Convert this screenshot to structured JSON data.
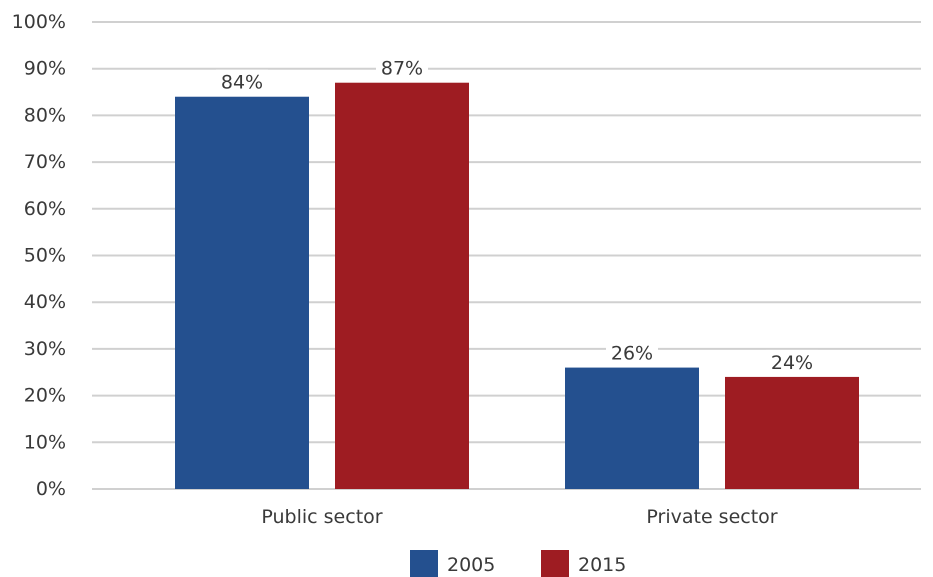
{
  "chart_data": {
    "type": "bar",
    "categories": [
      "Public sector",
      "Private sector"
    ],
    "series": [
      {
        "name": "2005",
        "values": [
          84,
          26
        ],
        "labels": [
          "84%",
          "26%"
        ],
        "color": "#24508F"
      },
      {
        "name": "2015",
        "values": [
          87,
          24
        ],
        "labels": [
          "87%",
          "24%"
        ],
        "color": "#9E1C22"
      }
    ],
    "ylim": [
      0,
      100
    ],
    "yticks": [
      0,
      10,
      20,
      30,
      40,
      50,
      60,
      70,
      80,
      90,
      100
    ],
    "ytick_labels": [
      "0%",
      "10%",
      "20%",
      "30%",
      "40%",
      "50%",
      "60%",
      "70%",
      "80%",
      "90%",
      "100%"
    ],
    "grid": true,
    "legend": "bottom-center",
    "title": "",
    "xlabel": "",
    "ylabel": ""
  }
}
